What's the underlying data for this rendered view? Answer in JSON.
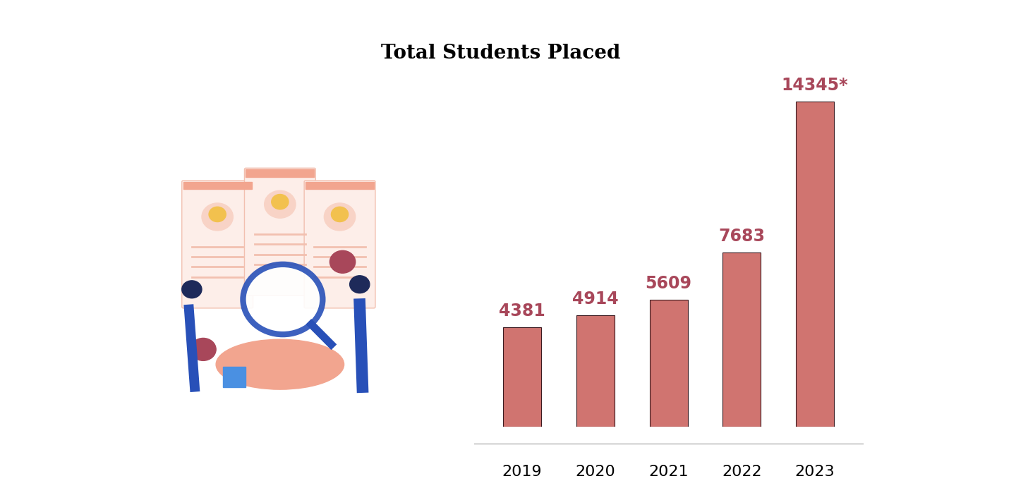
{
  "chart_data": {
    "type": "bar",
    "title": "Total Students Placed",
    "categories": [
      "2019",
      "2020",
      "2021",
      "2022",
      "2023"
    ],
    "values": [
      4381,
      4914,
      5609,
      7683,
      14345
    ],
    "value_labels": [
      "4381",
      "4914",
      "5609",
      "7683",
      "14345*"
    ],
    "color": "#d07470",
    "data_labels": true,
    "tick_labels": "x",
    "grid": false
  }
}
